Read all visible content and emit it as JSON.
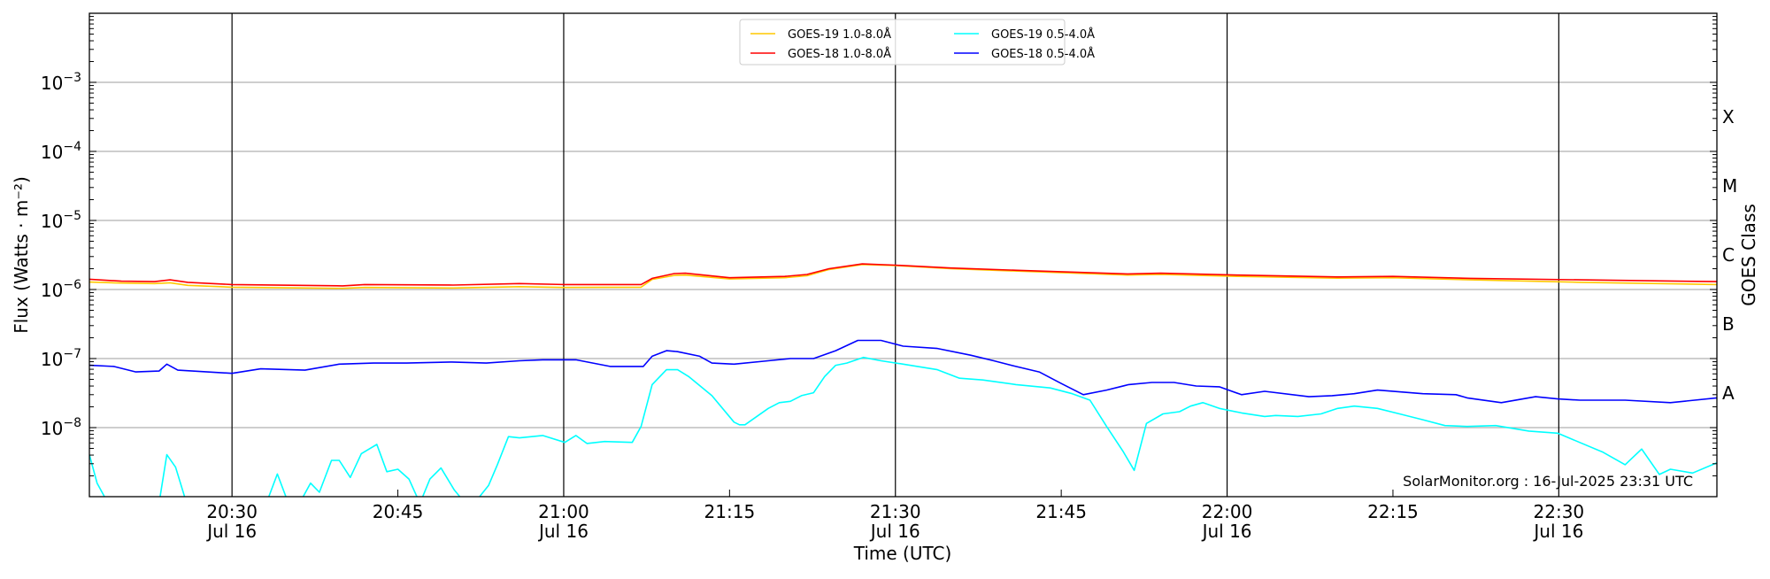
{
  "chart_data": {
    "type": "line",
    "title": "",
    "xlabel": "Time (UTC)",
    "ylabel": "Flux (Watts · m⁻²)",
    "y2label": "GOES Class",
    "yscale": "log",
    "ylim": [
      1e-09,
      0.01
    ],
    "x_unit": "minutes since 20:00 UTC, 16 Jul 2025",
    "xlim": [
      17.1,
      164.3
    ],
    "grid": true,
    "legend_placement": "top-center",
    "x_ticks": [
      {
        "value": 30,
        "label": "20:30",
        "sub": "Jul 16",
        "major": true
      },
      {
        "value": 45,
        "label": "20:45",
        "sub": "",
        "major": false
      },
      {
        "value": 60,
        "label": "21:00",
        "sub": "Jul 16",
        "major": true
      },
      {
        "value": 75,
        "label": "21:15",
        "sub": "",
        "major": false
      },
      {
        "value": 90,
        "label": "21:30",
        "sub": "Jul 16",
        "major": true
      },
      {
        "value": 105,
        "label": "21:45",
        "sub": "",
        "major": false
      },
      {
        "value": 120,
        "label": "22:00",
        "sub": "Jul 16",
        "major": true
      },
      {
        "value": 135,
        "label": "22:15",
        "sub": "",
        "major": false
      },
      {
        "value": 150,
        "label": "22:30",
        "sub": "Jul 16",
        "major": true
      }
    ],
    "y_ticks": [
      {
        "value": 0.001,
        "base": "10",
        "exp": "−3"
      },
      {
        "value": 0.0001,
        "base": "10",
        "exp": "−4"
      },
      {
        "value": 1e-05,
        "base": "10",
        "exp": "−5"
      },
      {
        "value": 1e-06,
        "base": "10",
        "exp": "−6"
      },
      {
        "value": 1e-07,
        "base": "10",
        "exp": "−7"
      },
      {
        "value": 1e-08,
        "base": "10",
        "exp": "−8"
      }
    ],
    "goes_classes": [
      {
        "label": "X",
        "value": 0.000316
      },
      {
        "label": "M",
        "value": 3.16e-05
      },
      {
        "label": "C",
        "value": 3.16e-06
      },
      {
        "label": "B",
        "value": 3.16e-07
      },
      {
        "label": "A",
        "value": 3.16e-08
      }
    ],
    "annotation": "SolarMonitor.org : 16-Jul-2025 23:31 UTC",
    "series": [
      {
        "name": "GOES-19 1.0-8.0Å",
        "color": "#ffc800",
        "points": [
          [
            17.1,
            1.28e-06
          ],
          [
            20,
            1.24e-06
          ],
          [
            23,
            1.22e-06
          ],
          [
            24.4,
            1.25e-06
          ],
          [
            26,
            1.15e-06
          ],
          [
            30,
            1.08e-06
          ],
          [
            40,
            1.04e-06
          ],
          [
            42,
            1.07e-06
          ],
          [
            50,
            1.05e-06
          ],
          [
            56,
            1.1e-06
          ],
          [
            60,
            1.07e-06
          ],
          [
            67,
            1.08e-06
          ],
          [
            68,
            1.4e-06
          ],
          [
            70,
            1.6e-06
          ],
          [
            71,
            1.62e-06
          ],
          [
            75,
            1.42e-06
          ],
          [
            80,
            1.48e-06
          ],
          [
            82,
            1.58e-06
          ],
          [
            84,
            1.95e-06
          ],
          [
            87,
            2.3e-06
          ],
          [
            90,
            2.22e-06
          ],
          [
            95,
            2e-06
          ],
          [
            101,
            1.85e-06
          ],
          [
            111,
            1.62e-06
          ],
          [
            114,
            1.65e-06
          ],
          [
            121,
            1.55e-06
          ],
          [
            130,
            1.46e-06
          ],
          [
            135,
            1.48e-06
          ],
          [
            142,
            1.38e-06
          ],
          [
            152,
            1.27e-06
          ],
          [
            164.3,
            1.18e-06
          ]
        ]
      },
      {
        "name": "GOES-18 1.0-8.0Å",
        "color": "#ff0000",
        "points": [
          [
            17.1,
            1.41e-06
          ],
          [
            20,
            1.32e-06
          ],
          [
            23,
            1.3e-06
          ],
          [
            24.4,
            1.38e-06
          ],
          [
            26,
            1.27e-06
          ],
          [
            30,
            1.18e-06
          ],
          [
            40,
            1.13e-06
          ],
          [
            42,
            1.18e-06
          ],
          [
            50,
            1.16e-06
          ],
          [
            56,
            1.22e-06
          ],
          [
            60,
            1.18e-06
          ],
          [
            67,
            1.18e-06
          ],
          [
            68,
            1.45e-06
          ],
          [
            70,
            1.7e-06
          ],
          [
            71,
            1.72e-06
          ],
          [
            75,
            1.48e-06
          ],
          [
            80,
            1.55e-06
          ],
          [
            82,
            1.65e-06
          ],
          [
            84,
            2e-06
          ],
          [
            87,
            2.35e-06
          ],
          [
            90,
            2.25e-06
          ],
          [
            95,
            2.05e-06
          ],
          [
            101,
            1.9e-06
          ],
          [
            111,
            1.68e-06
          ],
          [
            114,
            1.72e-06
          ],
          [
            121,
            1.62e-06
          ],
          [
            130,
            1.52e-06
          ],
          [
            135,
            1.55e-06
          ],
          [
            142,
            1.45e-06
          ],
          [
            152,
            1.38e-06
          ],
          [
            164.3,
            1.3e-06
          ]
        ]
      },
      {
        "name": "GOES-19 0.5-4.0Å",
        "color": "#00ffff",
        "points": [
          [
            17.1,
            4.05e-09
          ],
          [
            17.8,
            1.57e-09
          ],
          [
            18.8,
            8e-10
          ],
          [
            23.4,
            8e-10
          ],
          [
            24.1,
            4.05e-09
          ],
          [
            24.9,
            2.67e-09
          ],
          [
            25.9,
            8e-10
          ],
          [
            33.1,
            8e-10
          ],
          [
            34.1,
            2.13e-09
          ],
          [
            35.1,
            8e-10
          ],
          [
            36.1,
            8e-10
          ],
          [
            37.1,
            1.57e-09
          ],
          [
            37.9,
            1.16e-09
          ],
          [
            39,
            3.35e-09
          ],
          [
            39.7,
            3.35e-09
          ],
          [
            40.7,
            1.9e-09
          ],
          [
            41.7,
            4.2e-09
          ],
          [
            43.1,
            5.7e-09
          ],
          [
            44,
            2.3e-09
          ],
          [
            45,
            2.5e-09
          ],
          [
            46,
            1.8e-09
          ],
          [
            47,
            8e-10
          ],
          [
            47.9,
            1.8e-09
          ],
          [
            48.9,
            2.6e-09
          ],
          [
            50.1,
            1.25e-09
          ],
          [
            51.1,
            8e-10
          ],
          [
            51.9,
            8e-10
          ],
          [
            53.2,
            1.45e-09
          ],
          [
            54,
            2.9e-09
          ],
          [
            55,
            7.4e-09
          ],
          [
            56,
            7.1e-09
          ],
          [
            58.1,
            7.7e-09
          ],
          [
            60.1,
            6.1e-09
          ],
          [
            61.1,
            7.7e-09
          ],
          [
            62.1,
            5.9e-09
          ],
          [
            63.7,
            6.3e-09
          ],
          [
            66.2,
            6.1e-09
          ],
          [
            67,
            1.04e-08
          ],
          [
            68,
            4.2e-08
          ],
          [
            69.3,
            6.9e-08
          ],
          [
            70.3,
            6.9e-08
          ],
          [
            71.3,
            5.5e-08
          ],
          [
            73.4,
            2.9e-08
          ],
          [
            75.4,
            1.2e-08
          ],
          [
            75.9,
            1.1e-08
          ],
          [
            76.4,
            1.1e-08
          ],
          [
            78.5,
            1.9e-08
          ],
          [
            79.5,
            2.3e-08
          ],
          [
            80.5,
            2.4e-08
          ],
          [
            81.5,
            2.9e-08
          ],
          [
            82.6,
            3.2e-08
          ],
          [
            83.6,
            5.5e-08
          ],
          [
            84.6,
            8e-08
          ],
          [
            85.6,
            8.6e-08
          ],
          [
            87.1,
            1.04e-07
          ],
          [
            88.7,
            9.3e-08
          ],
          [
            90.7,
            8.3e-08
          ],
          [
            93.8,
            6.9e-08
          ],
          [
            95.8,
            5.2e-08
          ],
          [
            97.9,
            4.9e-08
          ],
          [
            100.9,
            4.2e-08
          ],
          [
            104,
            3.75e-08
          ],
          [
            106,
            3.1e-08
          ],
          [
            107.6,
            2.5e-08
          ],
          [
            109.1,
            1.04e-08
          ],
          [
            110.6,
            4.5e-09
          ],
          [
            111.6,
            2.4e-09
          ],
          [
            112.7,
            1.15e-08
          ],
          [
            114.2,
            1.58e-08
          ],
          [
            115.7,
            1.7e-08
          ],
          [
            116.7,
            2.05e-08
          ],
          [
            117.8,
            2.3e-08
          ],
          [
            119.3,
            1.9e-08
          ],
          [
            121.3,
            1.63e-08
          ],
          [
            123.4,
            1.45e-08
          ],
          [
            124.4,
            1.5e-08
          ],
          [
            126.4,
            1.45e-08
          ],
          [
            128.5,
            1.58e-08
          ],
          [
            130,
            1.9e-08
          ],
          [
            131.5,
            2.05e-08
          ],
          [
            133.6,
            1.9e-08
          ],
          [
            135.6,
            1.58e-08
          ],
          [
            137.7,
            1.3e-08
          ],
          [
            139.7,
            1.07e-08
          ],
          [
            141.7,
            1.04e-08
          ],
          [
            144.3,
            1.07e-08
          ],
          [
            147.3,
            8.9e-09
          ],
          [
            149.9,
            8.3e-09
          ],
          [
            154,
            4.4e-09
          ],
          [
            156,
            2.9e-09
          ],
          [
            157.5,
            4.9e-09
          ],
          [
            159.1,
            2.1e-09
          ],
          [
            160.1,
            2.5e-09
          ],
          [
            162.1,
            2.2e-09
          ],
          [
            164.3,
            3.1e-09
          ]
        ]
      },
      {
        "name": "GOES-18 0.5-4.0Å",
        "color": "#0000ff",
        "points": [
          [
            17.1,
            8e-08
          ],
          [
            19.3,
            7.7e-08
          ],
          [
            21.3,
            6.4e-08
          ],
          [
            23.4,
            6.6e-08
          ],
          [
            24.1,
            8.3e-08
          ],
          [
            25.1,
            6.8e-08
          ],
          [
            30,
            6.1e-08
          ],
          [
            32.6,
            7.1e-08
          ],
          [
            36.6,
            6.8e-08
          ],
          [
            39.7,
            8.3e-08
          ],
          [
            42.8,
            8.6e-08
          ],
          [
            45.8,
            8.6e-08
          ],
          [
            49.9,
            8.9e-08
          ],
          [
            53,
            8.6e-08
          ],
          [
            56,
            9.3e-08
          ],
          [
            58.1,
            9.6e-08
          ],
          [
            61.1,
            9.6e-08
          ],
          [
            64.2,
            7.7e-08
          ],
          [
            67.2,
            7.7e-08
          ],
          [
            68,
            1.08e-07
          ],
          [
            69.3,
            1.3e-07
          ],
          [
            70.3,
            1.26e-07
          ],
          [
            72.3,
            1.08e-07
          ],
          [
            73.4,
            8.6e-08
          ],
          [
            75.4,
            8.3e-08
          ],
          [
            78.5,
            9.3e-08
          ],
          [
            80.5,
            1e-07
          ],
          [
            82.6,
            1e-07
          ],
          [
            84.6,
            1.3e-07
          ],
          [
            86.6,
            1.83e-07
          ],
          [
            88.7,
            1.83e-07
          ],
          [
            90.7,
            1.51e-07
          ],
          [
            93.8,
            1.4e-07
          ],
          [
            96.8,
            1.12e-07
          ],
          [
            98.9,
            9.3e-08
          ],
          [
            100.9,
            7.7e-08
          ],
          [
            103,
            6.4e-08
          ],
          [
            105,
            4.35e-08
          ],
          [
            107,
            3e-08
          ],
          [
            109.1,
            3.5e-08
          ],
          [
            111.1,
            4.2e-08
          ],
          [
            113.2,
            4.5e-08
          ],
          [
            115.2,
            4.5e-08
          ],
          [
            117.2,
            4e-08
          ],
          [
            119.3,
            3.9e-08
          ],
          [
            121.3,
            3e-08
          ],
          [
            123.4,
            3.35e-08
          ],
          [
            127.4,
            2.8e-08
          ],
          [
            129.5,
            2.9e-08
          ],
          [
            131.5,
            3.1e-08
          ],
          [
            133.6,
            3.5e-08
          ],
          [
            137.7,
            3.1e-08
          ],
          [
            140.7,
            3e-08
          ],
          [
            141.7,
            2.7e-08
          ],
          [
            144.8,
            2.3e-08
          ],
          [
            147.9,
            2.8e-08
          ],
          [
            149.9,
            2.6e-08
          ],
          [
            151.9,
            2.5e-08
          ],
          [
            156,
            2.5e-08
          ],
          [
            160.1,
            2.3e-08
          ],
          [
            164.3,
            2.7e-08
          ]
        ]
      }
    ]
  }
}
